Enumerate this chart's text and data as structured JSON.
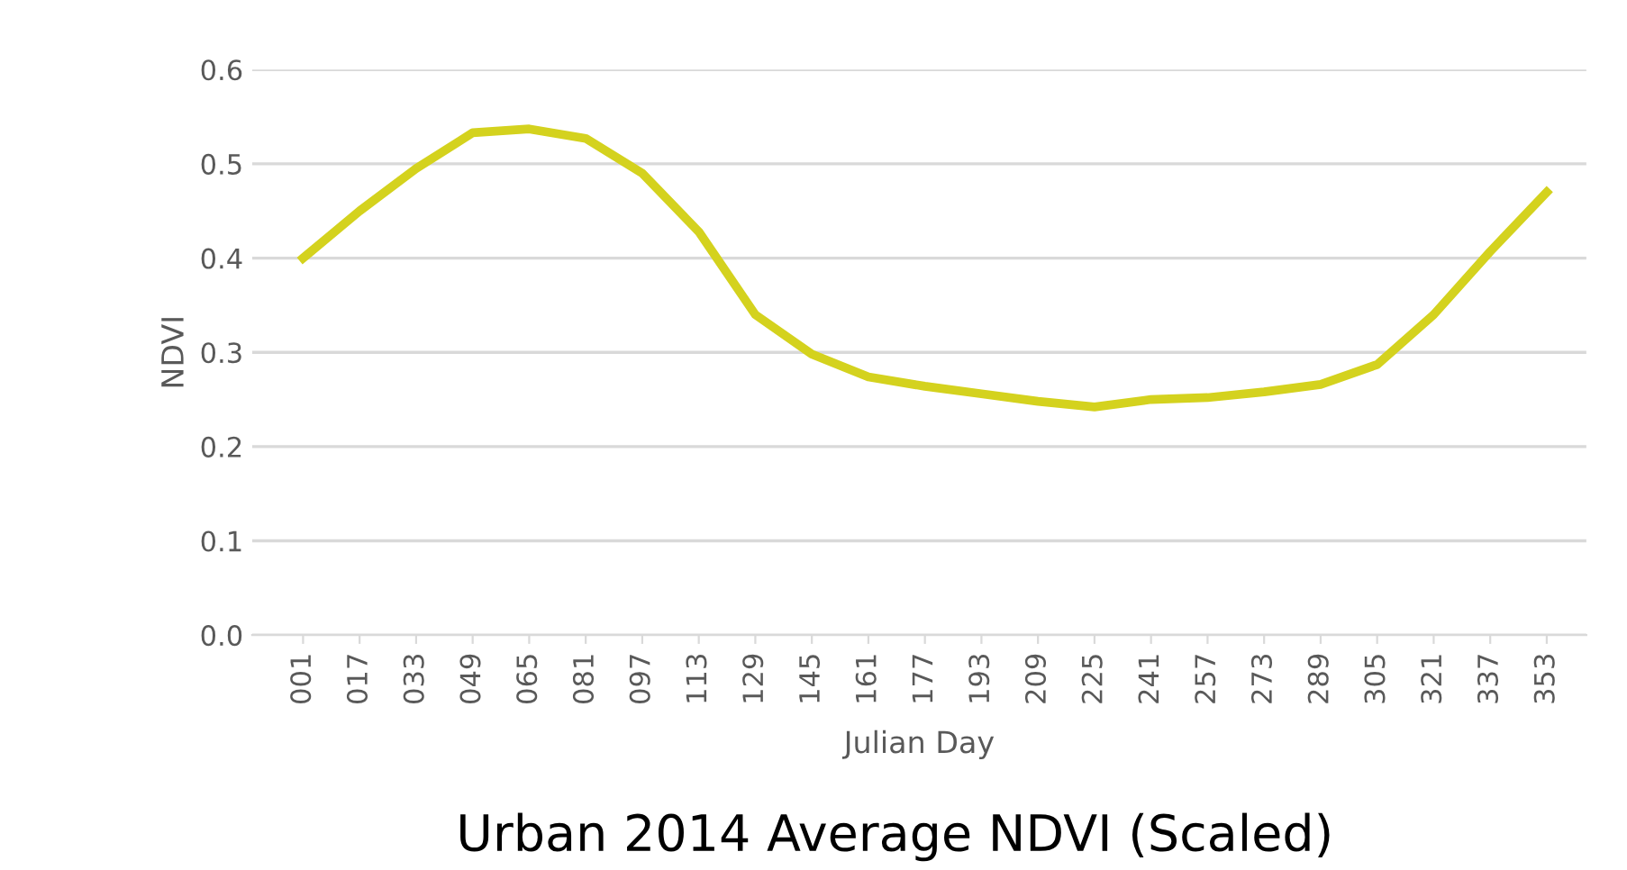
{
  "chart_data": {
    "type": "line",
    "title": "Urban 2014 Average NDVI (Scaled)",
    "xlabel": "Julian Day",
    "ylabel": "NDVI",
    "categories": [
      "001",
      "017",
      "033",
      "049",
      "065",
      "081",
      "097",
      "113",
      "129",
      "145",
      "161",
      "177",
      "193",
      "209",
      "225",
      "241",
      "257",
      "273",
      "289",
      "305",
      "321",
      "337",
      "353"
    ],
    "series": [
      {
        "color": "#d4d21e",
        "values": [
          0.4,
          0.45,
          0.495,
          0.533,
          0.537,
          0.527,
          0.49,
          0.428,
          0.34,
          0.298,
          0.274,
          0.264,
          0.256,
          0.248,
          0.242,
          0.25,
          0.252,
          0.258,
          0.266,
          0.287,
          0.34,
          0.407,
          0.47
        ]
      }
    ],
    "ylim": [
      0,
      0.6
    ],
    "yticks": [
      {
        "value": 0,
        "label": "0.0"
      },
      {
        "value": 0.1,
        "label": "0.1"
      },
      {
        "value": 0.2,
        "label": "0.2"
      },
      {
        "value": 0.3,
        "label": "0.3"
      },
      {
        "value": 0.4,
        "label": "0.4"
      },
      {
        "value": 0.5,
        "label": "0.5"
      },
      {
        "value": 0.6,
        "label": "0.6"
      }
    ],
    "grid": "y",
    "line_style": "solid"
  }
}
